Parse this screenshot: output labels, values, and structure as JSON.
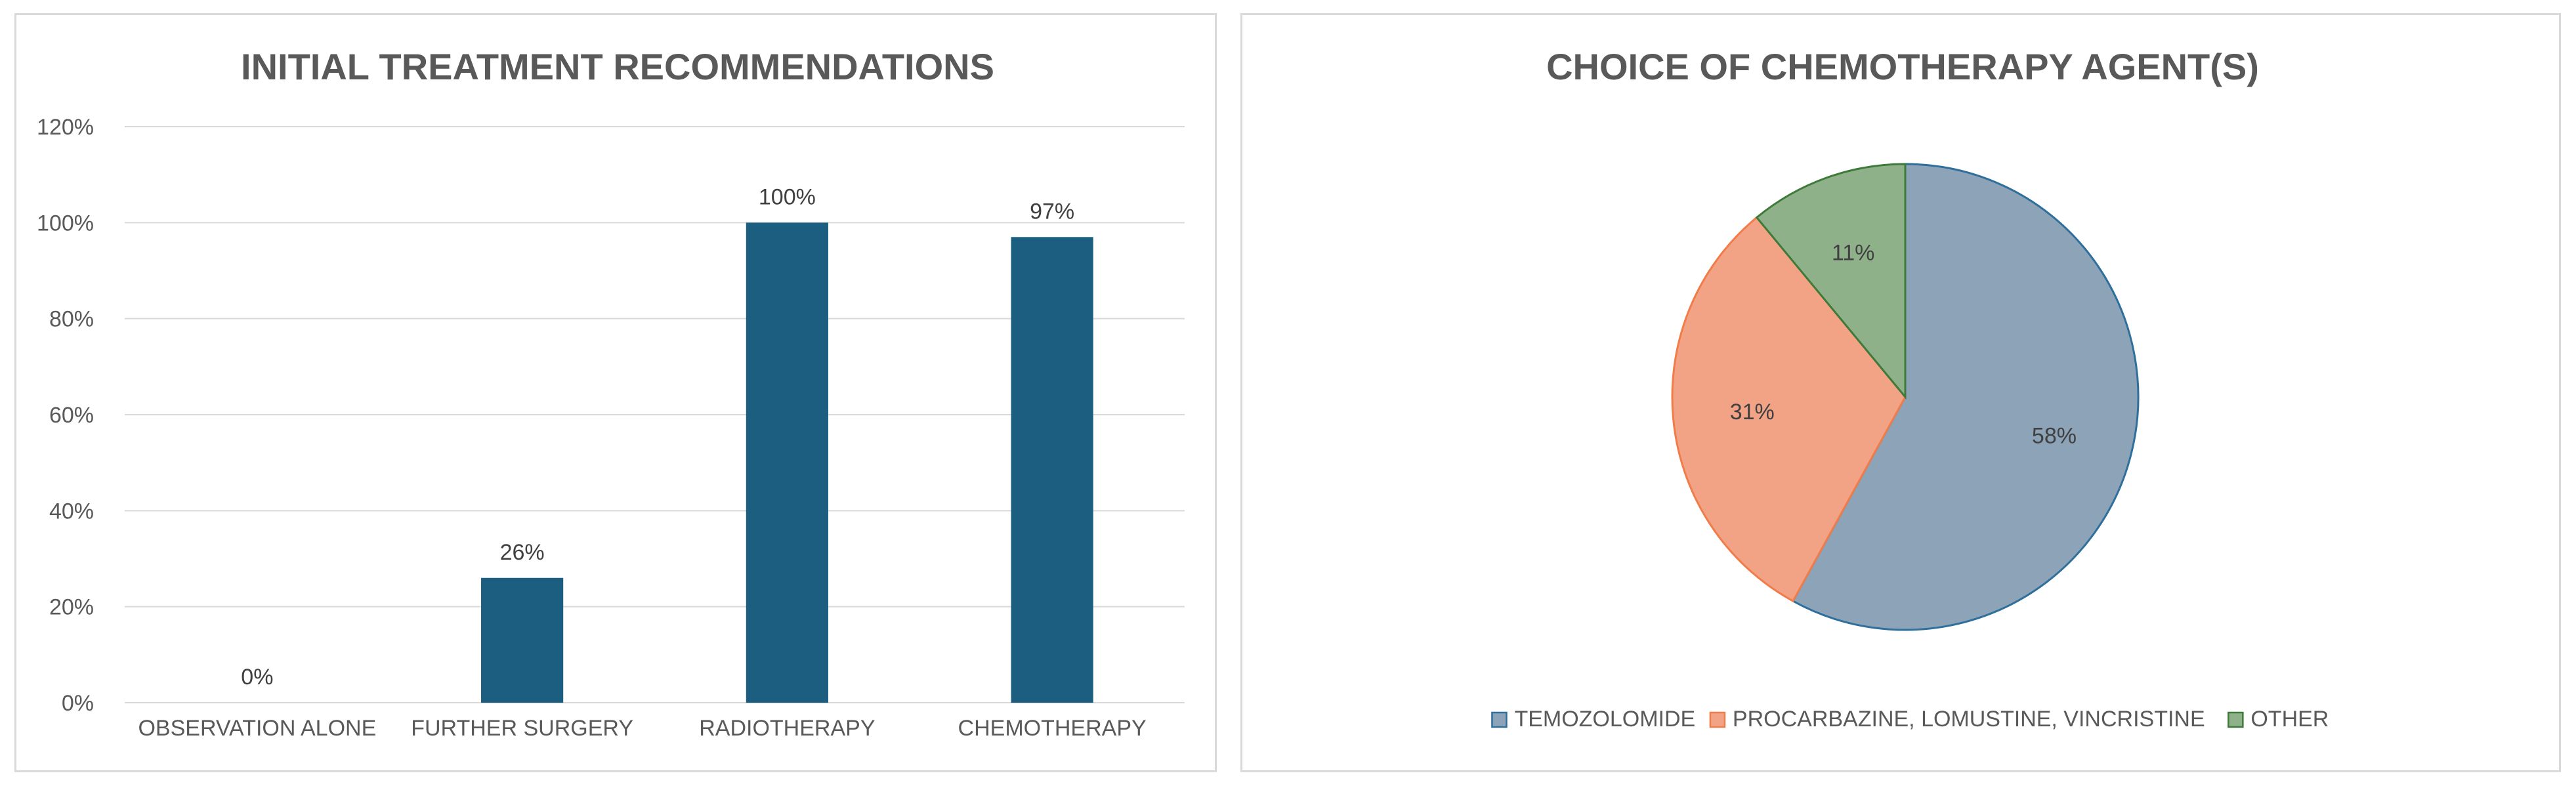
{
  "chart_data": [
    {
      "type": "bar",
      "title": "INITIAL TREATMENT RECOMMENDATIONS",
      "categories": [
        "OBSERVATION ALONE",
        "FURTHER SURGERY",
        "RADIOTHERAPY",
        "CHEMOTHERAPY"
      ],
      "values": [
        0,
        26,
        100,
        97
      ],
      "data_labels": [
        "0%",
        "26%",
        "100%",
        "97%"
      ],
      "yticks": [
        "0%",
        "20%",
        "40%",
        "60%",
        "80%",
        "100%",
        "120%"
      ],
      "ylim": [
        0,
        120
      ],
      "grid": true,
      "color": "#1b5e80"
    },
    {
      "type": "pie",
      "title": "CHOICE OF CHEMOTHERAPY AGENT(S)",
      "labels": [
        "TEMOZOLOMIDE",
        "PROCARBAZINE, LOMUSTINE, VINCRISTINE",
        "OTHER"
      ],
      "values": [
        58,
        31,
        11
      ],
      "data_labels": [
        "58%",
        "31%",
        "11%"
      ],
      "fills": [
        "#8da3b8",
        "#f2a386",
        "#8fb18a"
      ],
      "strokes": [
        "#2e6f9b",
        "#f07c4a",
        "#3f7a3a"
      ],
      "legend_position": "bottom"
    }
  ]
}
